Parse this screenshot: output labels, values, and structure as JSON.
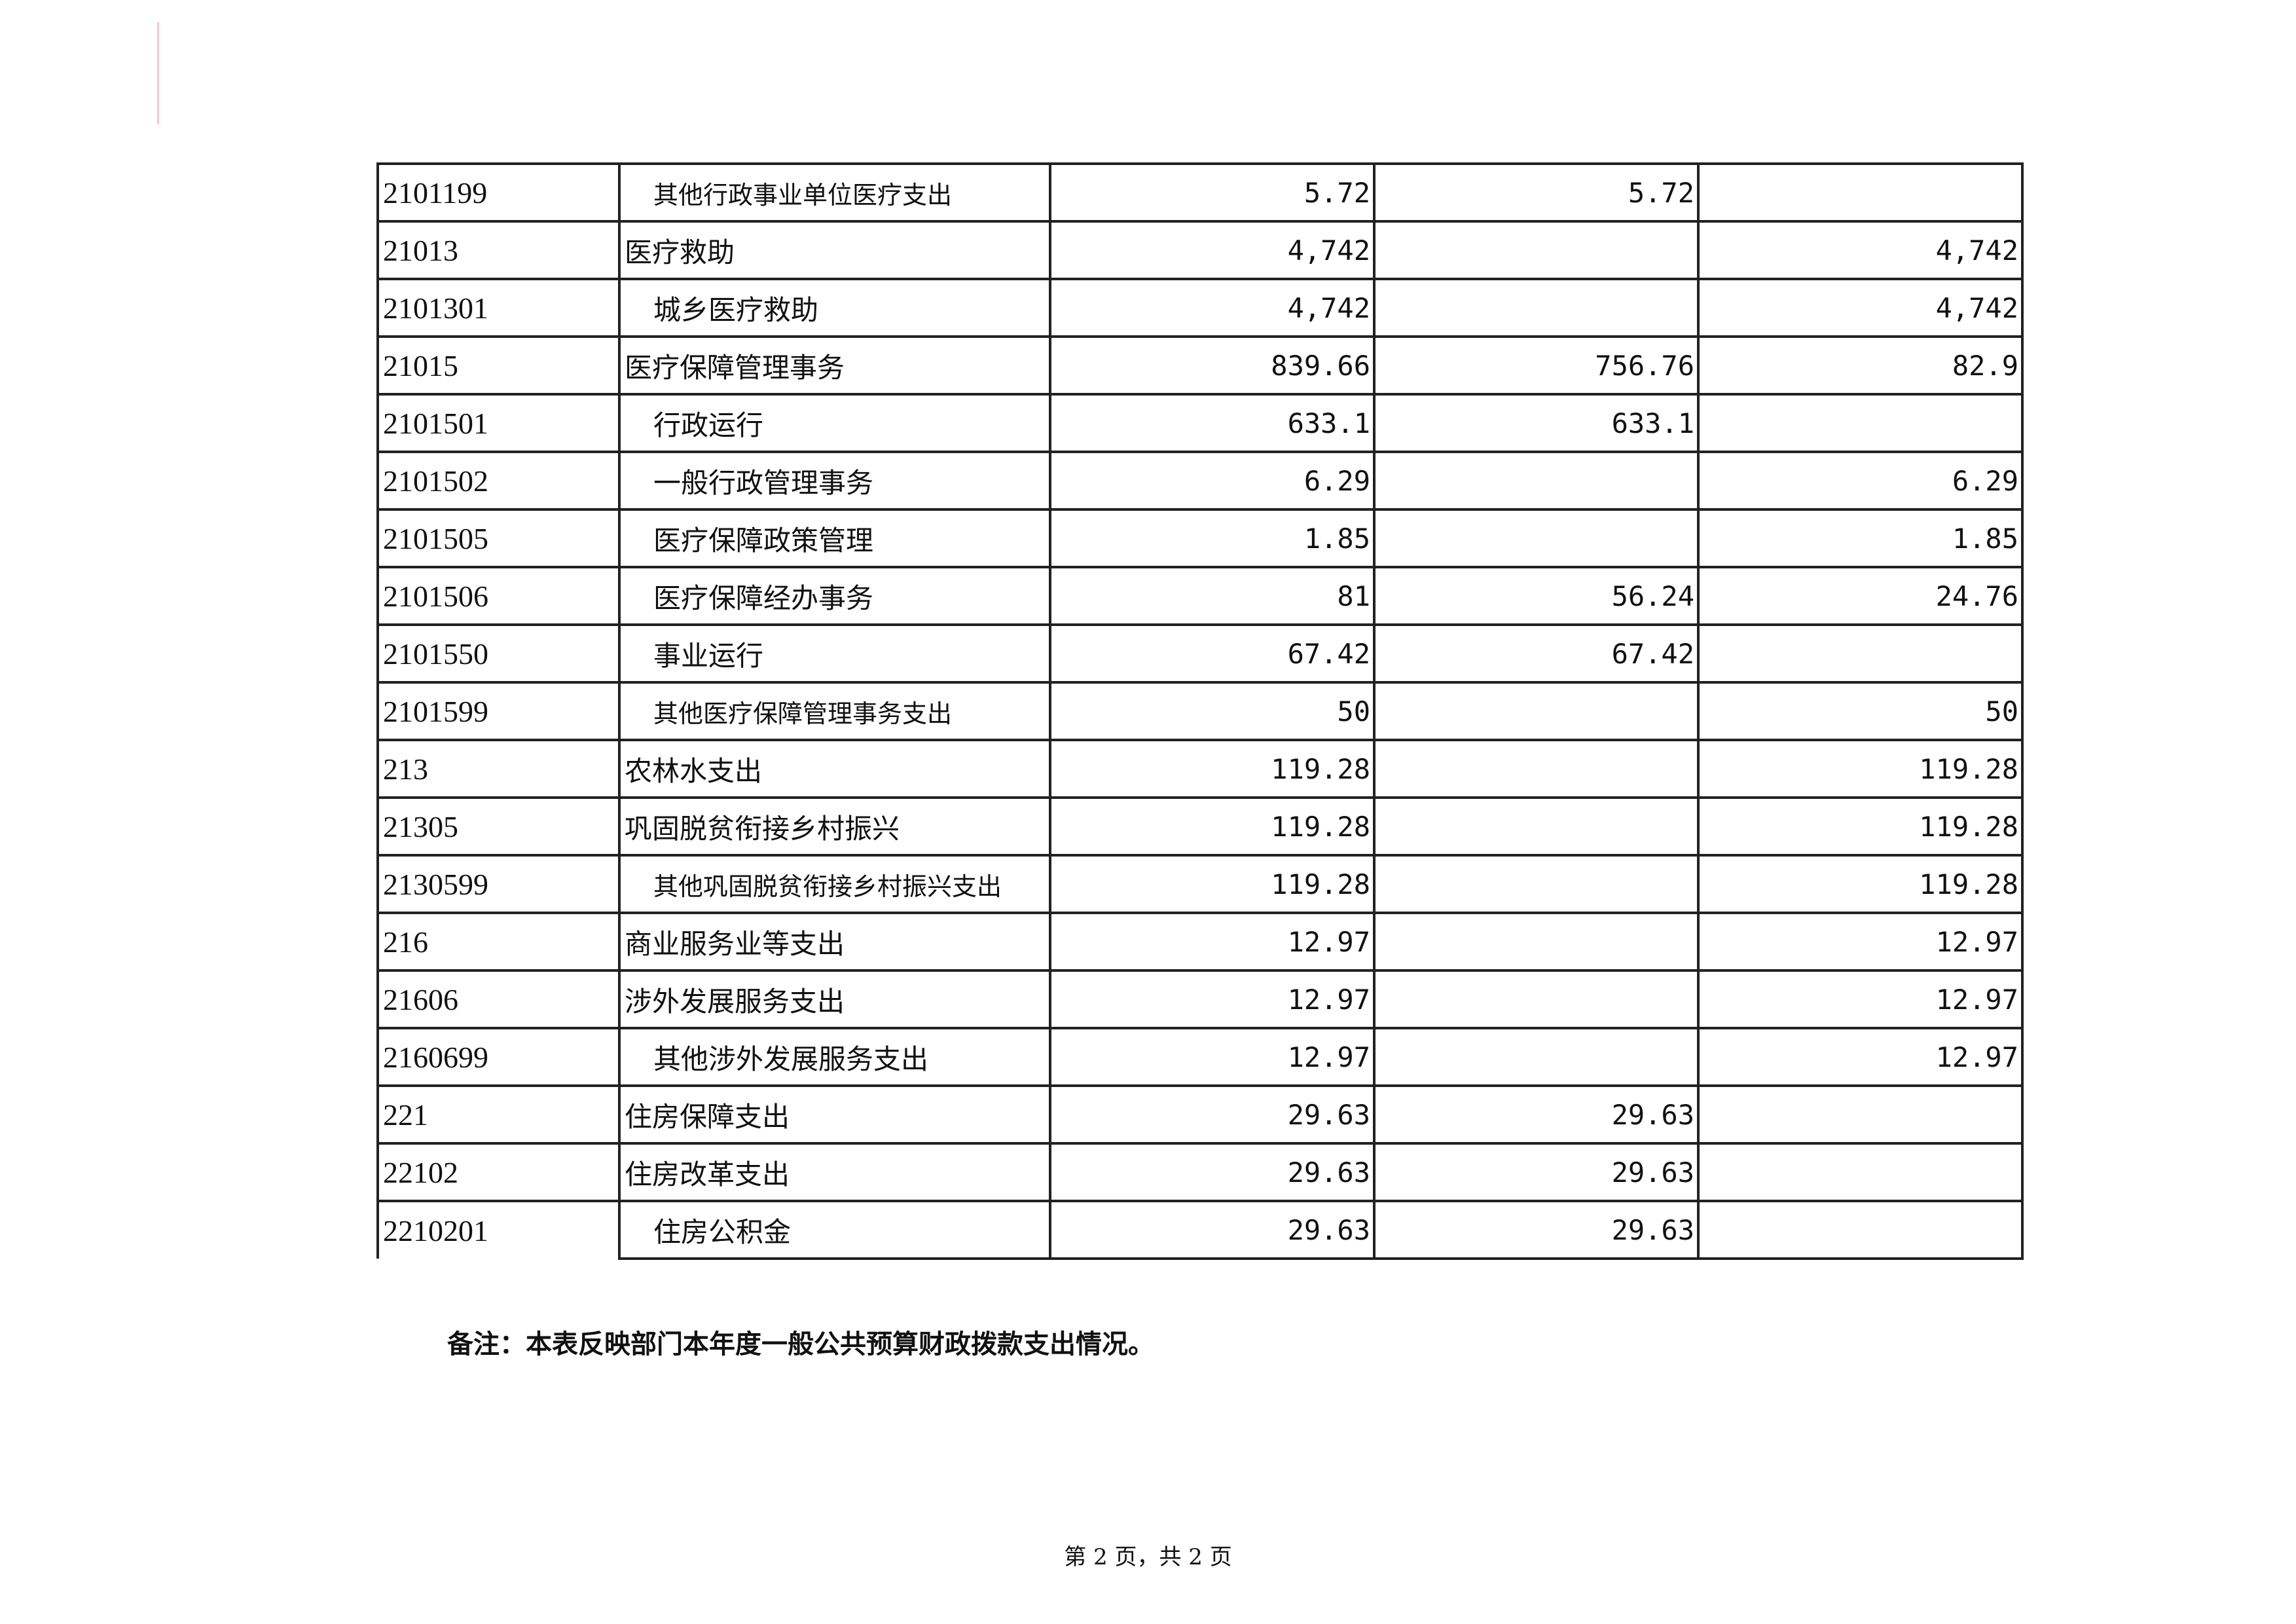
{
  "rows": [
    {
      "code": "2101199",
      "name": "其他行政事业单位医疗支出",
      "level": 2,
      "total": "5.72",
      "basic": "5.72",
      "project": ""
    },
    {
      "code": "21013",
      "name": "医疗救助",
      "level": 1,
      "total": "4,742",
      "basic": "",
      "project": "4,742"
    },
    {
      "code": "2101301",
      "name": "城乡医疗救助",
      "level": 2,
      "total": "4,742",
      "basic": "",
      "project": "4,742"
    },
    {
      "code": "21015",
      "name": "医疗保障管理事务",
      "level": 1,
      "total": "839.66",
      "basic": "756.76",
      "project": "82.9"
    },
    {
      "code": "2101501",
      "name": "行政运行",
      "level": 2,
      "total": "633.1",
      "basic": "633.1",
      "project": ""
    },
    {
      "code": "2101502",
      "name": "一般行政管理事务",
      "level": 2,
      "total": "6.29",
      "basic": "",
      "project": "6.29"
    },
    {
      "code": "2101505",
      "name": "医疗保障政策管理",
      "level": 2,
      "total": "1.85",
      "basic": "",
      "project": "1.85"
    },
    {
      "code": "2101506",
      "name": "医疗保障经办事务",
      "level": 2,
      "total": "81",
      "basic": "56.24",
      "project": "24.76"
    },
    {
      "code": "2101550",
      "name": "事业运行",
      "level": 2,
      "total": "67.42",
      "basic": "67.42",
      "project": ""
    },
    {
      "code": "2101599",
      "name": "其他医疗保障管理事务支出",
      "level": 2,
      "total": "50",
      "basic": "",
      "project": "50"
    },
    {
      "code": "213",
      "name": "农林水支出",
      "level": 1,
      "total": "119.28",
      "basic": "",
      "project": "119.28"
    },
    {
      "code": "21305",
      "name": "巩固脱贫衔接乡村振兴",
      "level": 1,
      "total": "119.28",
      "basic": "",
      "project": "119.28"
    },
    {
      "code": "2130599",
      "name": "其他巩固脱贫衔接乡村振兴支出",
      "level": 2,
      "total": "119.28",
      "basic": "",
      "project": "119.28"
    },
    {
      "code": "216",
      "name": "商业服务业等支出",
      "level": 1,
      "total": "12.97",
      "basic": "",
      "project": "12.97"
    },
    {
      "code": "21606",
      "name": "涉外发展服务支出",
      "level": 1,
      "total": "12.97",
      "basic": "",
      "project": "12.97"
    },
    {
      "code": "2160699",
      "name": "其他涉外发展服务支出",
      "level": 2,
      "total": "12.97",
      "basic": "",
      "project": "12.97"
    },
    {
      "code": "221",
      "name": "住房保障支出",
      "level": 1,
      "total": "29.63",
      "basic": "29.63",
      "project": ""
    },
    {
      "code": "22102",
      "name": "住房改革支出",
      "level": 1,
      "total": "29.63",
      "basic": "29.63",
      "project": ""
    },
    {
      "code": "2210201",
      "name": "住房公积金",
      "level": 2,
      "total": "29.63",
      "basic": "29.63",
      "project": ""
    }
  ],
  "note": "备注：本表反映部门本年度一般公共预算财政拨款支出情况。",
  "pager": "第 2 页，共 2 页"
}
